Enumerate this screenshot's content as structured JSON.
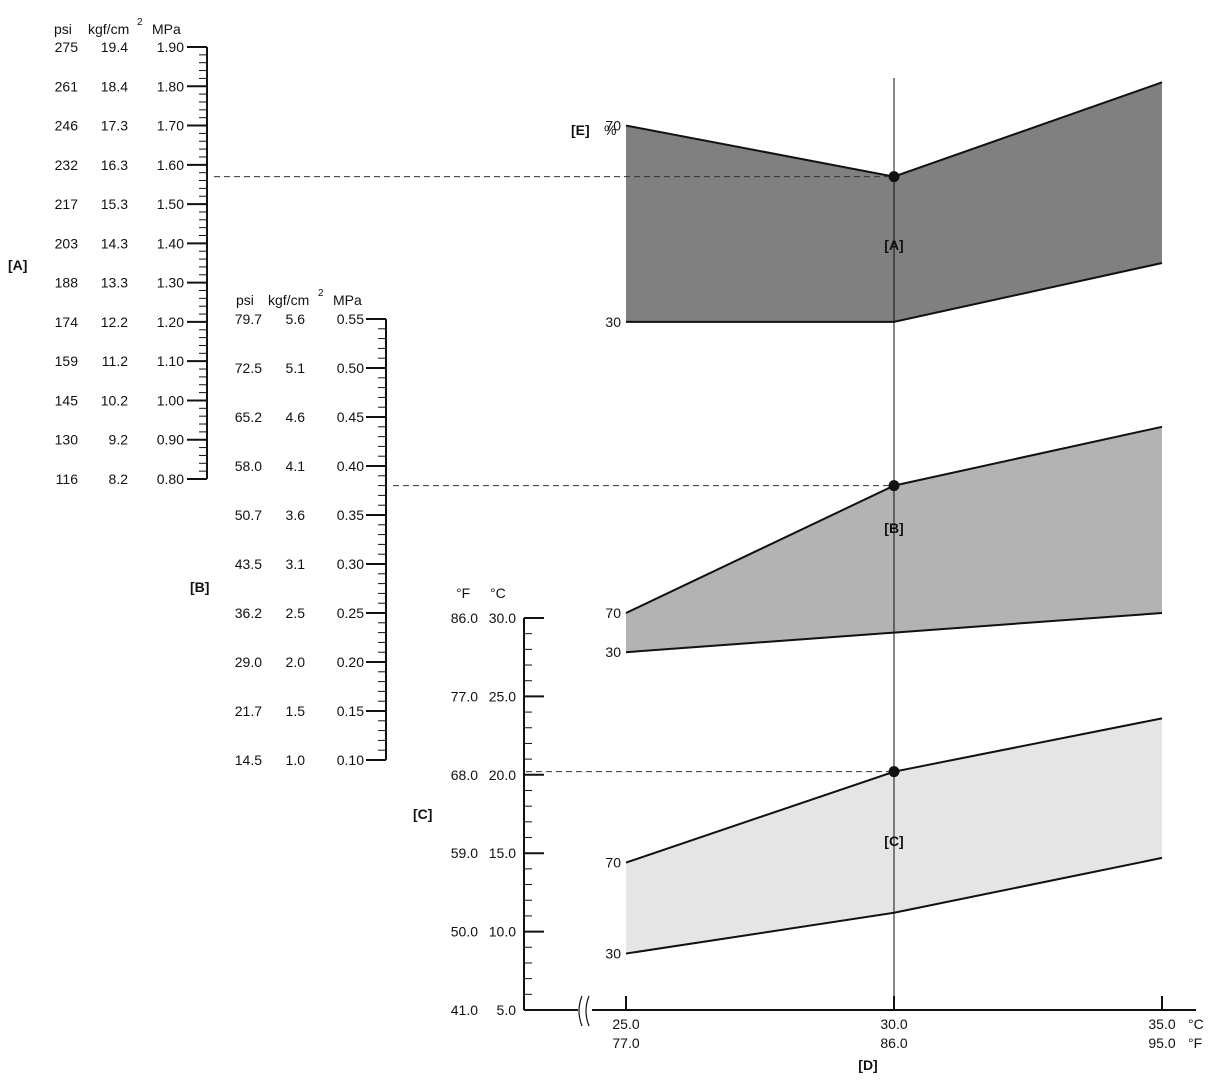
{
  "chart_data": {
    "type": "area",
    "x_axis": {
      "label": "[D]",
      "units": [
        "°C",
        "°F"
      ],
      "ticks_c": [
        "25.0",
        "30.0",
        "35.0"
      ],
      "ticks_f": [
        "77.0",
        "86.0",
        "95.0"
      ],
      "axis_break": true
    },
    "y_axis_temperature": {
      "label": "[C]",
      "units": [
        "°F",
        "°C"
      ],
      "ticks_f": [
        "86.0",
        "77.0",
        "68.0",
        "59.0",
        "50.0",
        "41.0"
      ],
      "ticks_c": [
        "30.0",
        "25.0",
        "20.0",
        "15.0",
        "10.0",
        "5.0"
      ],
      "range_c": [
        5.0,
        30.0
      ]
    },
    "pressure_scale_a": {
      "label": "[A]",
      "units": [
        "psi",
        "kgf/cm",
        "MPa"
      ],
      "unit_superscript": "2",
      "ticks_psi": [
        "275",
        "261",
        "246",
        "232",
        "217",
        "203",
        "188",
        "174",
        "159",
        "145",
        "130",
        "116"
      ],
      "ticks_kgf": [
        "19.4",
        "18.4",
        "17.3",
        "16.3",
        "15.3",
        "14.3",
        "13.3",
        "12.2",
        "11.2",
        "10.2",
        "9.2",
        "8.2"
      ],
      "ticks_mpa": [
        "1.90",
        "1.80",
        "1.70",
        "1.60",
        "1.50",
        "1.40",
        "1.30",
        "1.20",
        "1.10",
        "1.00",
        "0.90",
        "0.80"
      ],
      "range_mpa": [
        0.8,
        1.9
      ]
    },
    "pressure_scale_b": {
      "label": "[B]",
      "units": [
        "psi",
        "kgf/cm",
        "MPa"
      ],
      "unit_superscript": "2",
      "ticks_psi": [
        "79.7",
        "72.5",
        "65.2",
        "58.0",
        "50.7",
        "43.5",
        "36.2",
        "29.0",
        "21.7",
        "14.5"
      ],
      "ticks_kgf": [
        "5.6",
        "5.1",
        "4.6",
        "4.1",
        "3.6",
        "3.1",
        "2.5",
        "2.0",
        "1.5",
        "1.0"
      ],
      "ticks_mpa": [
        "0.55",
        "0.50",
        "0.45",
        "0.40",
        "0.35",
        "0.30",
        "0.25",
        "0.20",
        "0.15",
        "0.10"
      ],
      "range_mpa": [
        0.1,
        0.55
      ]
    },
    "humidity": {
      "label": "[E]",
      "unit": "%",
      "levels": [
        "70",
        "30"
      ]
    },
    "bands": [
      {
        "label": "[A]",
        "color": "#808080",
        "x_c": [
          25.0,
          30.0,
          35.0
        ],
        "upper_mpa": [
          1.7,
          1.57,
          1.81
        ],
        "lower_mpa": [
          1.2,
          1.2,
          1.35
        ]
      },
      {
        "label": "[B]",
        "color": "#b3b3b3",
        "x_c": [
          25.0,
          30.0,
          35.0
        ],
        "upper_mpa": [
          0.25,
          0.38,
          0.44
        ],
        "lower_mpa": [
          0.21,
          0.23,
          0.25
        ]
      },
      {
        "label": "[C]",
        "color": "#e5e5e5",
        "x_c": [
          25.0,
          30.0,
          35.0
        ],
        "upper_c": [
          14.4,
          20.2,
          23.6
        ],
        "lower_c": [
          8.6,
          11.2,
          14.7
        ]
      }
    ],
    "reading": {
      "x_c": 30.0,
      "a_mpa": 1.57,
      "b_mpa": 0.38,
      "c_c": 20.2
    }
  }
}
